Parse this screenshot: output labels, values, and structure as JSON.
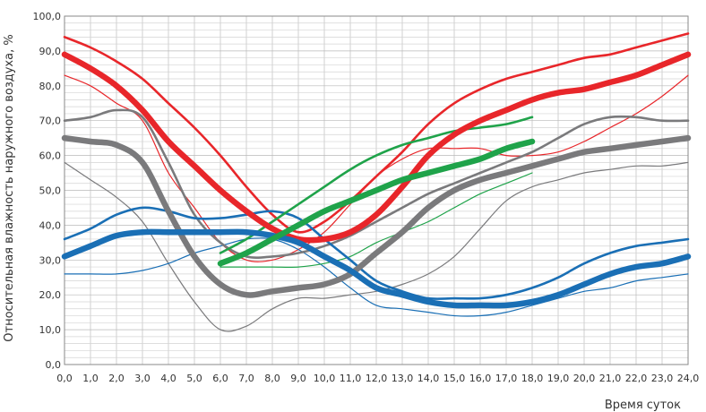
{
  "chart_data": {
    "type": "line",
    "title": "",
    "xlabel": "Время суток",
    "ylabel": "Относительная влажность наружного  воздуха, %",
    "xlim": [
      0,
      24
    ],
    "ylim": [
      0,
      100
    ],
    "x_ticks": [
      "0,0",
      "1,0",
      "2,0",
      "3,0",
      "4,0",
      "5,0",
      "6,0",
      "7,0",
      "8,0",
      "9,0",
      "10,0",
      "11,0",
      "12,0",
      "13,0",
      "14,0",
      "15,0",
      "16,0",
      "17,0",
      "18,0",
      "19,0",
      "20,0",
      "21,0",
      "22,0",
      "23,0",
      "24,0"
    ],
    "y_ticks": [
      "0,0",
      "10,0",
      "20,0",
      "30,0",
      "40,0",
      "50,0",
      "60,0",
      "70,0",
      "80,0",
      "90,0",
      "100,0"
    ],
    "grid": true,
    "legend": "none",
    "series": [
      {
        "color": "#e8262a",
        "weight": "thin",
        "points": [
          [
            0,
            83
          ],
          [
            1,
            80
          ],
          [
            2,
            75
          ],
          [
            3,
            70
          ],
          [
            4,
            55
          ],
          [
            5,
            45
          ],
          [
            6,
            35
          ],
          [
            7,
            30
          ],
          [
            8,
            30
          ],
          [
            9,
            33
          ],
          [
            10,
            38
          ],
          [
            11,
            46
          ],
          [
            12,
            54
          ],
          [
            13,
            59
          ],
          [
            14,
            62
          ],
          [
            15,
            62
          ],
          [
            16,
            62
          ],
          [
            17,
            60
          ],
          [
            18,
            60
          ],
          [
            19,
            61
          ],
          [
            20,
            64
          ],
          [
            21,
            68
          ],
          [
            22,
            72
          ],
          [
            23,
            77
          ],
          [
            24,
            83
          ]
        ]
      },
      {
        "color": "#e8262a",
        "weight": "medium",
        "points": [
          [
            0,
            94
          ],
          [
            1,
            91
          ],
          [
            2,
            87
          ],
          [
            3,
            82
          ],
          [
            4,
            75
          ],
          [
            5,
            68
          ],
          [
            6,
            60
          ],
          [
            7,
            51
          ],
          [
            8,
            43
          ],
          [
            9,
            38
          ],
          [
            10,
            41
          ],
          [
            11,
            47
          ],
          [
            12,
            54
          ],
          [
            13,
            61
          ],
          [
            14,
            69
          ],
          [
            15,
            75
          ],
          [
            16,
            79
          ],
          [
            17,
            82
          ],
          [
            18,
            84
          ],
          [
            19,
            86
          ],
          [
            20,
            88
          ],
          [
            21,
            89
          ],
          [
            22,
            91
          ],
          [
            23,
            93
          ],
          [
            24,
            95
          ]
        ]
      },
      {
        "color": "#e8262a",
        "weight": "thick",
        "points": [
          [
            0,
            89
          ],
          [
            1,
            85
          ],
          [
            2,
            80
          ],
          [
            3,
            73
          ],
          [
            4,
            64
          ],
          [
            5,
            57
          ],
          [
            6,
            50
          ],
          [
            7,
            44
          ],
          [
            8,
            39
          ],
          [
            9,
            36
          ],
          [
            10,
            36
          ],
          [
            11,
            38
          ],
          [
            12,
            43
          ],
          [
            13,
            51
          ],
          [
            14,
            60
          ],
          [
            15,
            66
          ],
          [
            16,
            70
          ],
          [
            17,
            73
          ],
          [
            18,
            76
          ],
          [
            19,
            78
          ],
          [
            20,
            79
          ],
          [
            21,
            81
          ],
          [
            22,
            83
          ],
          [
            23,
            86
          ],
          [
            24,
            89
          ]
        ]
      },
      {
        "color": "#7a7a7c",
        "weight": "thin",
        "points": [
          [
            0,
            58
          ],
          [
            1,
            53
          ],
          [
            2,
            48
          ],
          [
            3,
            41
          ],
          [
            4,
            29
          ],
          [
            5,
            18
          ],
          [
            6,
            10
          ],
          [
            7,
            11
          ],
          [
            8,
            16
          ],
          [
            9,
            19
          ],
          [
            10,
            19
          ],
          [
            11,
            20
          ],
          [
            12,
            21
          ],
          [
            13,
            23
          ],
          [
            14,
            26
          ],
          [
            15,
            31
          ],
          [
            16,
            39
          ],
          [
            17,
            47
          ],
          [
            18,
            51
          ],
          [
            19,
            53
          ],
          [
            20,
            55
          ],
          [
            21,
            56
          ],
          [
            22,
            57
          ],
          [
            23,
            57
          ],
          [
            24,
            58
          ]
        ]
      },
      {
        "color": "#7a7a7c",
        "weight": "medium",
        "points": [
          [
            0,
            70
          ],
          [
            1,
            71
          ],
          [
            2,
            73
          ],
          [
            3,
            71
          ],
          [
            4,
            58
          ],
          [
            5,
            43
          ],
          [
            6,
            35
          ],
          [
            7,
            31
          ],
          [
            8,
            31
          ],
          [
            9,
            32
          ],
          [
            10,
            34
          ],
          [
            11,
            37
          ],
          [
            12,
            41
          ],
          [
            13,
            45
          ],
          [
            14,
            49
          ],
          [
            15,
            52
          ],
          [
            16,
            55
          ],
          [
            17,
            58
          ],
          [
            18,
            61
          ],
          [
            19,
            65
          ],
          [
            20,
            69
          ],
          [
            21,
            71
          ],
          [
            22,
            71
          ],
          [
            23,
            70
          ],
          [
            24,
            70
          ]
        ]
      },
      {
        "color": "#7a7a7c",
        "weight": "thick",
        "points": [
          [
            0,
            65
          ],
          [
            1,
            64
          ],
          [
            2,
            63
          ],
          [
            3,
            58
          ],
          [
            4,
            44
          ],
          [
            5,
            31
          ],
          [
            6,
            23
          ],
          [
            7,
            20
          ],
          [
            8,
            21
          ],
          [
            9,
            22
          ],
          [
            10,
            23
          ],
          [
            11,
            26
          ],
          [
            12,
            32
          ],
          [
            13,
            38
          ],
          [
            14,
            45
          ],
          [
            15,
            50
          ],
          [
            16,
            53
          ],
          [
            17,
            55
          ],
          [
            18,
            57
          ],
          [
            19,
            59
          ],
          [
            20,
            61
          ],
          [
            21,
            62
          ],
          [
            22,
            63
          ],
          [
            23,
            64
          ],
          [
            24,
            65
          ]
        ]
      },
      {
        "color": "#1a6fb5",
        "weight": "thin",
        "points": [
          [
            0,
            26
          ],
          [
            1,
            26
          ],
          [
            2,
            26
          ],
          [
            3,
            27
          ],
          [
            4,
            29
          ],
          [
            5,
            32
          ],
          [
            6,
            34
          ],
          [
            7,
            36
          ],
          [
            8,
            36
          ],
          [
            9,
            33
          ],
          [
            10,
            28
          ],
          [
            11,
            22
          ],
          [
            12,
            17
          ],
          [
            13,
            16
          ],
          [
            14,
            15
          ],
          [
            15,
            14
          ],
          [
            16,
            14
          ],
          [
            17,
            15
          ],
          [
            18,
            17
          ],
          [
            19,
            19
          ],
          [
            20,
            21
          ],
          [
            21,
            22
          ],
          [
            22,
            24
          ],
          [
            23,
            25
          ],
          [
            24,
            26
          ]
        ]
      },
      {
        "color": "#1a6fb5",
        "weight": "medium",
        "points": [
          [
            0,
            36
          ],
          [
            1,
            39
          ],
          [
            2,
            43
          ],
          [
            3,
            45
          ],
          [
            4,
            44
          ],
          [
            5,
            42
          ],
          [
            6,
            42
          ],
          [
            7,
            43
          ],
          [
            8,
            44
          ],
          [
            9,
            42
          ],
          [
            10,
            36
          ],
          [
            11,
            30
          ],
          [
            12,
            24
          ],
          [
            13,
            21
          ],
          [
            14,
            19
          ],
          [
            15,
            19
          ],
          [
            16,
            19
          ],
          [
            17,
            20
          ],
          [
            18,
            22
          ],
          [
            19,
            25
          ],
          [
            20,
            29
          ],
          [
            21,
            32
          ],
          [
            22,
            34
          ],
          [
            23,
            35
          ],
          [
            24,
            36
          ]
        ]
      },
      {
        "color": "#1a6fb5",
        "weight": "thick",
        "points": [
          [
            0,
            31
          ],
          [
            1,
            34
          ],
          [
            2,
            37
          ],
          [
            3,
            38
          ],
          [
            4,
            38
          ],
          [
            5,
            38
          ],
          [
            6,
            38
          ],
          [
            7,
            38
          ],
          [
            8,
            37
          ],
          [
            9,
            35
          ],
          [
            10,
            31
          ],
          [
            11,
            27
          ],
          [
            12,
            22
          ],
          [
            13,
            20
          ],
          [
            14,
            18
          ],
          [
            15,
            17
          ],
          [
            16,
            17
          ],
          [
            17,
            17
          ],
          [
            18,
            18
          ],
          [
            19,
            20
          ],
          [
            20,
            23
          ],
          [
            21,
            26
          ],
          [
            22,
            28
          ],
          [
            23,
            29
          ],
          [
            24,
            31
          ]
        ]
      },
      {
        "color": "#1fa34a",
        "weight": "thin",
        "points": [
          [
            6,
            28
          ],
          [
            7,
            28
          ],
          [
            8,
            28
          ],
          [
            9,
            28
          ],
          [
            10,
            29
          ],
          [
            11,
            31
          ],
          [
            12,
            35
          ],
          [
            13,
            38
          ],
          [
            14,
            41
          ],
          [
            15,
            45
          ],
          [
            16,
            49
          ],
          [
            17,
            52
          ],
          [
            18,
            55
          ]
        ]
      },
      {
        "color": "#1fa34a",
        "weight": "medium",
        "points": [
          [
            6,
            32
          ],
          [
            7,
            36
          ],
          [
            8,
            41
          ],
          [
            9,
            46
          ],
          [
            10,
            51
          ],
          [
            11,
            56
          ],
          [
            12,
            60
          ],
          [
            13,
            63
          ],
          [
            14,
            65
          ],
          [
            15,
            67
          ],
          [
            16,
            68
          ],
          [
            17,
            69
          ],
          [
            18,
            71
          ]
        ]
      },
      {
        "color": "#1fa34a",
        "weight": "thick",
        "points": [
          [
            6,
            29
          ],
          [
            7,
            32
          ],
          [
            8,
            36
          ],
          [
            9,
            40
          ],
          [
            10,
            44
          ],
          [
            11,
            47
          ],
          [
            12,
            50
          ],
          [
            13,
            53
          ],
          [
            14,
            55
          ],
          [
            15,
            57
          ],
          [
            16,
            59
          ],
          [
            17,
            62
          ],
          [
            18,
            64
          ]
        ]
      }
    ]
  }
}
